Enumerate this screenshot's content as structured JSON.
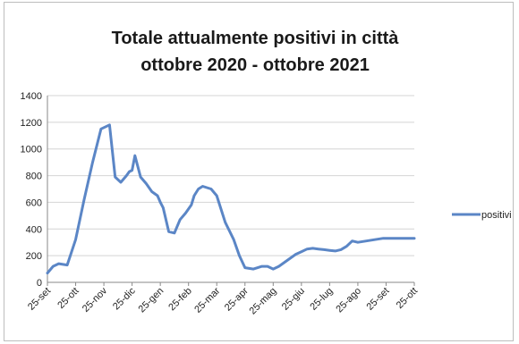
{
  "chart_data": {
    "type": "line",
    "title": "Totale attualmente positivi in città",
    "subtitle": "ottobre 2020 - ottobre 2021",
    "xlabel": "",
    "ylabel": "",
    "ylim": [
      0,
      1400
    ],
    "yticks": [
      0,
      200,
      400,
      600,
      800,
      1000,
      1200,
      1400
    ],
    "grid": "horizontal",
    "legend_position": "right",
    "line_color": "#5b86c6",
    "categories": [
      "25-set",
      "25-ott",
      "25-nov",
      "25-dic",
      "25-gen",
      "25-feb",
      "25-mar",
      "25-apr",
      "25-mag",
      "25-giu",
      "25-lug",
      "25-ago",
      "25-set",
      "25-ott"
    ],
    "series": [
      {
        "name": "positivi",
        "x": [
          0,
          0.2,
          0.4,
          0.7,
          1,
          1.3,
          1.6,
          1.9,
          2.2,
          2.4,
          2.6,
          2.8,
          2.9,
          3,
          3.1,
          3.3,
          3.5,
          3.7,
          3.9,
          4,
          4.1,
          4.3,
          4.5,
          4.7,
          4.9,
          5.1,
          5.2,
          5.35,
          5.5,
          5.8,
          6,
          6.3,
          6.6,
          6.8,
          7,
          7.3,
          7.6,
          7.8,
          8,
          8.2,
          8.4,
          8.6,
          8.8,
          9,
          9.2,
          9.4,
          9.6,
          9.8,
          10,
          10.2,
          10.4,
          10.6,
          10.8,
          11,
          11.3,
          11.6,
          11.9,
          12,
          12.2,
          12.5,
          12.8,
          13
        ],
        "values": [
          70,
          120,
          140,
          130,
          320,
          620,
          900,
          1150,
          1180,
          790,
          750,
          800,
          830,
          840,
          950,
          790,
          740,
          680,
          650,
          600,
          560,
          380,
          370,
          470,
          520,
          580,
          650,
          700,
          720,
          700,
          650,
          450,
          320,
          200,
          110,
          100,
          120,
          120,
          100,
          120,
          150,
          180,
          210,
          230,
          250,
          255,
          250,
          245,
          240,
          235,
          245,
          270,
          310,
          300,
          310,
          320,
          330,
          330,
          330,
          330,
          330,
          330
        ]
      }
    ]
  }
}
